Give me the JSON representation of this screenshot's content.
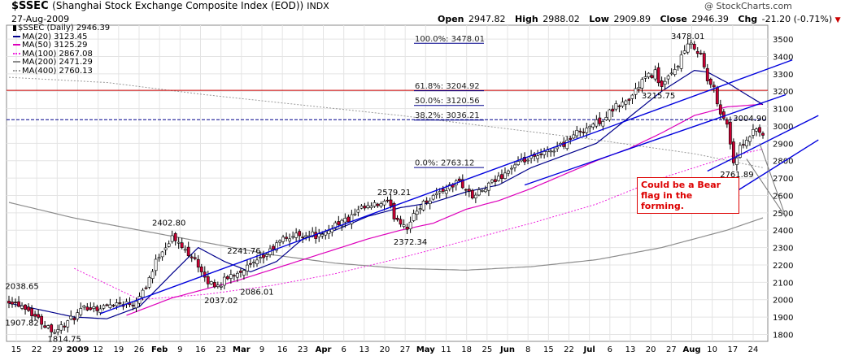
{
  "header": {
    "symbol": "$SSEC",
    "name": "(Shanghai Stock Exchange Composite Index (EOD))",
    "exchange": "INDX",
    "date": "27-Aug-2009",
    "open_label": "Open",
    "open": "2947.82",
    "high_label": "High",
    "high": "2988.02",
    "low_label": "Low",
    "low": "2909.89",
    "close_label": "Close",
    "close": "2946.39",
    "chg_label": "Chg",
    "chg": "-21.20 (-0.71%)",
    "credit": "@ StockCharts.com"
  },
  "legend": [
    {
      "label": "$SSEC (Daily) 2946.39",
      "color": "#000000",
      "style": "candle"
    },
    {
      "label": "MA(20) 3123.45",
      "color": "#00008b",
      "style": "solid"
    },
    {
      "label": "MA(50) 3125.29",
      "color": "#dd00bb",
      "style": "solid"
    },
    {
      "label": "MA(100) 2867.08",
      "color": "#ee22dd",
      "style": "dotted"
    },
    {
      "label": "MA(200) 2471.29",
      "color": "#8c8c8c",
      "style": "solid"
    },
    {
      "label": "MA(400) 2760.13",
      "color": "#9a9a9a",
      "style": "dotted"
    }
  ],
  "annotation": "Could be a Bear flag in the forming.",
  "colors": {
    "up": "#ffffff",
    "down": "#cc0033",
    "wick": "#000000",
    "fib": "#00008b",
    "red_line": "#cc0000",
    "trend": "#0000dd",
    "grid": "#e4e4e4"
  },
  "chart_data": {
    "type": "candlestick",
    "title": "$SSEC (Shanghai Stock Exchange Composite Index (EOD)) INDX",
    "ylim": [
      1760,
      3580
    ],
    "y_ticks": [
      1800,
      1900,
      2000,
      2100,
      2200,
      2300,
      2400,
      2500,
      2600,
      2700,
      2800,
      2900,
      3000,
      3100,
      3200,
      3300,
      3400,
      3500
    ],
    "x_labels": [
      "15",
      "22",
      "29",
      "2009",
      "12",
      "19",
      "26",
      "Feb",
      "9",
      "16",
      "23",
      "Mar",
      "9",
      "16",
      "23",
      "Apr",
      "6",
      "13",
      "20",
      "27",
      "May",
      "11",
      "18",
      "25",
      "Jun",
      "8",
      "15",
      "22",
      "Jul",
      "6",
      "13",
      "20",
      "27",
      "Aug",
      "10",
      "17",
      "24"
    ],
    "x_bold": [
      "2009",
      "Feb",
      "Mar",
      "Apr",
      "May",
      "Jun",
      "Jul",
      "Aug"
    ],
    "close_anchors": [
      [
        0,
        2000
      ],
      [
        5,
        1960
      ],
      [
        10,
        1870
      ],
      [
        14,
        1820
      ],
      [
        18,
        1870
      ],
      [
        24,
        1960
      ],
      [
        28,
        1950
      ],
      [
        32,
        1980
      ],
      [
        38,
        1980
      ],
      [
        42,
        2080
      ],
      [
        46,
        2260
      ],
      [
        50,
        2360
      ],
      [
        53,
        2300
      ],
      [
        57,
        2240
      ],
      [
        60,
        2110
      ],
      [
        64,
        2080
      ],
      [
        68,
        2140
      ],
      [
        72,
        2180
      ],
      [
        76,
        2210
      ],
      [
        80,
        2280
      ],
      [
        84,
        2350
      ],
      [
        88,
        2370
      ],
      [
        92,
        2380
      ],
      [
        96,
        2360
      ],
      [
        100,
        2440
      ],
      [
        104,
        2460
      ],
      [
        108,
        2520
      ],
      [
        112,
        2540
      ],
      [
        116,
        2560
      ],
      [
        118,
        2480
      ],
      [
        122,
        2420
      ],
      [
        126,
        2540
      ],
      [
        130,
        2600
      ],
      [
        134,
        2640
      ],
      [
        138,
        2680
      ],
      [
        142,
        2590
      ],
      [
        146,
        2640
      ],
      [
        150,
        2700
      ],
      [
        154,
        2760
      ],
      [
        158,
        2800
      ],
      [
        162,
        2820
      ],
      [
        166,
        2860
      ],
      [
        170,
        2900
      ],
      [
        174,
        2960
      ],
      [
        178,
        3000
      ],
      [
        182,
        3040
      ],
      [
        186,
        3110
      ],
      [
        190,
        3150
      ],
      [
        194,
        3260
      ],
      [
        198,
        3310
      ],
      [
        200,
        3220
      ],
      [
        204,
        3320
      ],
      [
        206,
        3400
      ],
      [
        208,
        3460
      ],
      [
        210,
        3460
      ],
      [
        212,
        3410
      ],
      [
        214,
        3260
      ],
      [
        216,
        3210
      ],
      [
        218,
        3080
      ],
      [
        220,
        3010
      ],
      [
        222,
        2790
      ],
      [
        224,
        2870
      ],
      [
        226,
        2900
      ],
      [
        228,
        2980
      ],
      [
        230,
        2950
      ],
      [
        231,
        2946.39
      ]
    ],
    "reference_lines": [
      {
        "label": "100.0%: 3478.01",
        "value": 3478.01
      },
      {
        "label": "61.8%: 3204.92",
        "value": 3204.92
      },
      {
        "label": "50.0%: 3120.56",
        "value": 3120.56
      },
      {
        "label": "38.2%: 3036.21",
        "value": 3036.21
      },
      {
        "label": "0.0%: 2763.12",
        "value": 2763.12
      }
    ],
    "horizontal_lines": [
      3204.92,
      3036.21
    ],
    "price_labels": [
      {
        "text": "2038.65",
        "day": 4,
        "value": 2038.65,
        "pos": "above"
      },
      {
        "text": "1907.82",
        "day": 4,
        "value": 1907.82,
        "pos": "below"
      },
      {
        "text": "1814.75",
        "day": 17,
        "value": 1814.75,
        "pos": "below"
      },
      {
        "text": "2402.80",
        "day": 49,
        "value": 2402.8,
        "pos": "above"
      },
      {
        "text": "2241.76",
        "day": 72,
        "value": 2241.76,
        "pos": "above"
      },
      {
        "text": "2037.02",
        "day": 65,
        "value": 2037.02,
        "pos": "below"
      },
      {
        "text": "2086.01",
        "day": 76,
        "value": 2086.01,
        "pos": "below"
      },
      {
        "text": "2579.21",
        "day": 118,
        "value": 2579.21,
        "pos": "above"
      },
      {
        "text": "2372.34",
        "day": 123,
        "value": 2372.34,
        "pos": "below"
      },
      {
        "text": "3478.01",
        "day": 208,
        "value": 3478.01,
        "pos": "above"
      },
      {
        "text": "3215.75",
        "day": 199,
        "value": 3215.75,
        "pos": "below"
      },
      {
        "text": "3004.90",
        "day": 227,
        "value": 3004.9,
        "pos": "above"
      },
      {
        "text": "2761.89",
        "day": 223,
        "value": 2761.89,
        "pos": "below"
      }
    ],
    "ma_anchors": {
      "MA(20)": [
        [
          0,
          1980
        ],
        [
          20,
          1900
        ],
        [
          30,
          1890
        ],
        [
          40,
          1960
        ],
        [
          50,
          2150
        ],
        [
          58,
          2300
        ],
        [
          66,
          2220
        ],
        [
          74,
          2160
        ],
        [
          82,
          2220
        ],
        [
          90,
          2350
        ],
        [
          100,
          2400
        ],
        [
          110,
          2480
        ],
        [
          120,
          2530
        ],
        [
          130,
          2560
        ],
        [
          140,
          2620
        ],
        [
          150,
          2660
        ],
        [
          160,
          2760
        ],
        [
          170,
          2830
        ],
        [
          180,
          2900
        ],
        [
          190,
          3050
        ],
        [
          200,
          3200
        ],
        [
          210,
          3320
        ],
        [
          214,
          3310
        ],
        [
          220,
          3250
        ],
        [
          226,
          3180
        ],
        [
          231,
          3123
        ]
      ],
      "MA(50)": [
        [
          36,
          1910
        ],
        [
          50,
          2010
        ],
        [
          60,
          2060
        ],
        [
          70,
          2110
        ],
        [
          80,
          2170
        ],
        [
          90,
          2230
        ],
        [
          100,
          2290
        ],
        [
          110,
          2350
        ],
        [
          120,
          2400
        ],
        [
          130,
          2440
        ],
        [
          140,
          2520
        ],
        [
          150,
          2570
        ],
        [
          160,
          2640
        ],
        [
          170,
          2720
        ],
        [
          180,
          2800
        ],
        [
          190,
          2870
        ],
        [
          200,
          2960
        ],
        [
          210,
          3060
        ],
        [
          220,
          3110
        ],
        [
          231,
          3125
        ]
      ],
      "MA(100)": [
        [
          20,
          2180
        ],
        [
          40,
          2000
        ],
        [
          60,
          2030
        ],
        [
          80,
          2080
        ],
        [
          100,
          2150
        ],
        [
          120,
          2240
        ],
        [
          140,
          2340
        ],
        [
          160,
          2440
        ],
        [
          180,
          2550
        ],
        [
          200,
          2700
        ],
        [
          220,
          2820
        ],
        [
          231,
          2867
        ]
      ],
      "MA(200)": [
        [
          0,
          2560
        ],
        [
          20,
          2470
        ],
        [
          40,
          2400
        ],
        [
          60,
          2330
        ],
        [
          80,
          2260
        ],
        [
          100,
          2210
        ],
        [
          120,
          2180
        ],
        [
          140,
          2170
        ],
        [
          160,
          2190
        ],
        [
          180,
          2230
        ],
        [
          200,
          2300
        ],
        [
          220,
          2400
        ],
        [
          231,
          2471
        ]
      ],
      "MA(400)": [
        [
          0,
          3280
        ],
        [
          30,
          3250
        ],
        [
          60,
          3180
        ],
        [
          90,
          3120
        ],
        [
          120,
          3060
        ],
        [
          150,
          2990
        ],
        [
          180,
          2920
        ],
        [
          210,
          2840
        ],
        [
          231,
          2760
        ]
      ]
    },
    "trendlines": [
      {
        "from": [
          28,
          1920
        ],
        "to": [
          240,
          3380
        ]
      },
      {
        "from": [
          158,
          2660
        ],
        "to": [
          238,
          3180
        ]
      },
      {
        "from": [
          214,
          2740
        ],
        "to": [
          248,
          3060
        ]
      },
      {
        "from": [
          220,
          2590
        ],
        "to": [
          248,
          2920
        ]
      }
    ],
    "callout_lines": [
      {
        "from_day": 238,
        "from_value": 2475,
        "to_day": 226,
        "to_value": 2810
      },
      {
        "from_day": 238,
        "from_value": 2475,
        "to_day": 230,
        "to_value": 2900
      }
    ]
  }
}
